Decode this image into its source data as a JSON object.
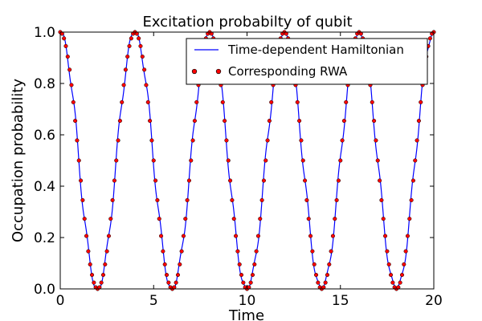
{
  "chart_data": {
    "type": "line",
    "title": "Excitation probabilty of qubit",
    "xlabel": "Time",
    "ylabel": "Occupation probability",
    "xlim": [
      0,
      20
    ],
    "ylim": [
      0,
      1.0
    ],
    "x_ticks": [
      0,
      5,
      10,
      15,
      20
    ],
    "y_ticks": [
      0.0,
      0.2,
      0.4,
      0.6,
      0.8,
      1.0
    ],
    "x_tick_labels": [
      "0",
      "5",
      "10",
      "15",
      "20"
    ],
    "y_tick_labels": [
      "0.0",
      "0.2",
      "0.4",
      "0.6",
      "0.8",
      "1.0"
    ],
    "grid": false,
    "legend_position": "upper right",
    "series": [
      {
        "name": "Time-dependent Hamiltonian",
        "style": "line",
        "color": "#0000ff",
        "function": "cos^2(pi*t/4) with a fast oscillation superimposed",
        "period": 4,
        "x_start": 0,
        "x_end": 20
      },
      {
        "name": "Corresponding RWA",
        "style": "markers",
        "color": "#ff0000",
        "edge_color": "#000000",
        "function": "cos^2(pi*t/4)",
        "period": 4,
        "x_start": 0,
        "x_end": 20,
        "point_spacing": 0.1
      }
    ]
  }
}
